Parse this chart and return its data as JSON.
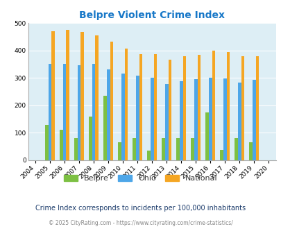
{
  "title": "Belpre Violent Crime Index",
  "title_color": "#1878c8",
  "years": [
    2004,
    2005,
    2006,
    2007,
    2008,
    2009,
    2010,
    2011,
    2012,
    2013,
    2014,
    2015,
    2016,
    2017,
    2018,
    2019,
    2020
  ],
  "bar_years": [
    2005,
    2006,
    2007,
    2008,
    2009,
    2010,
    2011,
    2012,
    2013,
    2014,
    2015,
    2016,
    2017,
    2018,
    2019
  ],
  "belpre": [
    128,
    110,
    82,
    158,
    235,
    65,
    82,
    36,
    82,
    82,
    82,
    175,
    38,
    82,
    65
  ],
  "ohio": [
    350,
    350,
    347,
    350,
    332,
    315,
    309,
    300,
    278,
    289,
    295,
    301,
    299,
    282,
    294
  ],
  "national": [
    469,
    474,
    467,
    455,
    432,
    406,
    387,
    387,
    367,
    378,
    383,
    398,
    394,
    380,
    380
  ],
  "belpre_color": "#7dc043",
  "ohio_color": "#4da6e8",
  "national_color": "#f5a623",
  "bg_color": "#ddeef5",
  "ylim": [
    0,
    500
  ],
  "yticks": [
    0,
    100,
    200,
    300,
    400,
    500
  ],
  "bar_width": 0.22,
  "subtitle": "Crime Index corresponds to incidents per 100,000 inhabitants",
  "subtitle_color": "#1a3a6a",
  "footer": "© 2025 CityRating.com - https://www.cityrating.com/crime-statistics/",
  "footer_color": "#888888"
}
